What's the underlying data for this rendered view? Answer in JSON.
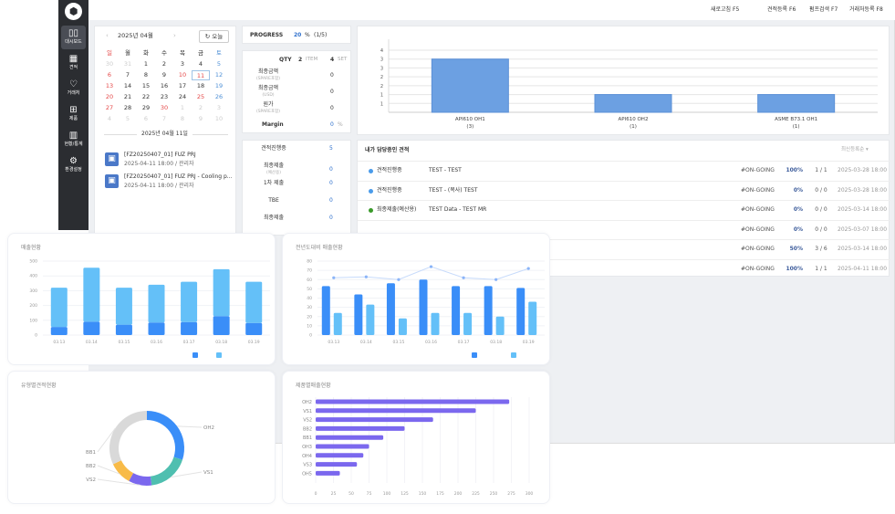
{
  "sidebar": {
    "items": [
      {
        "label": "대시보드",
        "icon": "dashboard-icon",
        "active": true
      },
      {
        "label": "견적",
        "icon": "quote-icon"
      },
      {
        "label": "거래처",
        "icon": "handshake-icon"
      },
      {
        "label": "제품",
        "icon": "product-icon"
      },
      {
        "label": "현황/통계",
        "icon": "chart-icon"
      },
      {
        "label": "환경설정",
        "icon": "gear-icon"
      }
    ]
  },
  "header": {
    "shortcuts": [
      "새로고침 F5",
      "견적등록 F6",
      "펌프검색 F7",
      "거래처등록 F8"
    ]
  },
  "calendar": {
    "title": "2025년 04월",
    "today_label": "오늘",
    "weekdays": [
      "일",
      "월",
      "화",
      "수",
      "목",
      "금",
      "토"
    ],
    "weeks": [
      [
        [
          "30",
          "m"
        ],
        [
          "31",
          "m"
        ],
        [
          "1",
          ""
        ],
        [
          "2",
          ""
        ],
        [
          "3",
          ""
        ],
        [
          "4",
          ""
        ],
        [
          "5",
          "s"
        ]
      ],
      [
        [
          "6",
          "h"
        ],
        [
          "7",
          ""
        ],
        [
          "8",
          ""
        ],
        [
          "9",
          ""
        ],
        [
          "10",
          "h"
        ],
        [
          "11",
          "t"
        ],
        [
          "12",
          "s"
        ]
      ],
      [
        [
          "13",
          "h"
        ],
        [
          "14",
          ""
        ],
        [
          "15",
          ""
        ],
        [
          "16",
          ""
        ],
        [
          "17",
          ""
        ],
        [
          "18",
          ""
        ],
        [
          "19",
          "s"
        ]
      ],
      [
        [
          "20",
          "h"
        ],
        [
          "21",
          ""
        ],
        [
          "22",
          ""
        ],
        [
          "23",
          ""
        ],
        [
          "24",
          ""
        ],
        [
          "25",
          "h"
        ],
        [
          "26",
          "s"
        ]
      ],
      [
        [
          "27",
          "h"
        ],
        [
          "28",
          ""
        ],
        [
          "29",
          ""
        ],
        [
          "30",
          "h"
        ],
        [
          "1",
          "m"
        ],
        [
          "2",
          "m"
        ],
        [
          "3",
          "m"
        ]
      ],
      [
        [
          "4",
          "m"
        ],
        [
          "5",
          "m"
        ],
        [
          "6",
          "m"
        ],
        [
          "7",
          "m"
        ],
        [
          "8",
          "m"
        ],
        [
          "9",
          "m"
        ],
        [
          "10",
          "m"
        ]
      ]
    ],
    "selected_date": "2025년 04월 11일",
    "events": [
      {
        "title": "[FZ20250407_01] FUZ PRJ",
        "meta": "2025-04-11 18:00 / 관리자"
      },
      {
        "title": "[FZ20250407_01] FUZ PRJ - Cooling p...",
        "meta": "2025-04-11 18:00 / 관리자"
      }
    ]
  },
  "progress": {
    "label": "PROGRESS",
    "value": "20",
    "unit": "%",
    "count": "(1/5)"
  },
  "qty": {
    "label": "QTY",
    "items": "2",
    "items_unit": "ITEM",
    "sets": "4",
    "sets_unit": "SET",
    "rows": [
      {
        "label": "최종금액",
        "sub": "(SPARE포함)",
        "value": "0"
      },
      {
        "label": "최종금액",
        "sub": "(USD)",
        "value": "0"
      },
      {
        "label": "원가",
        "sub": "(SPARE포함)",
        "value": "0"
      }
    ],
    "margin_label": "Margin",
    "margin_value": "0",
    "margin_unit": "%"
  },
  "status": [
    {
      "label": "견적진행중",
      "value": "5"
    },
    {
      "label": "최종제출",
      "sub": "(예산용)",
      "value": "0"
    },
    {
      "label": "1차 제출",
      "value": "0"
    },
    {
      "label": "TBE",
      "value": "0"
    },
    {
      "label": "최종제출",
      "value": "0"
    }
  ],
  "quotes": {
    "title": "내가 담당중인 견적",
    "sort": "최신등록순 ▾",
    "rows": [
      {
        "status": "견적진행중",
        "color": "#4a9bea",
        "name": "TEST - TEST",
        "tag": "#ON-GOING",
        "pct": "100%",
        "count": "1 / 1",
        "date": "2025-03-28 18:00"
      },
      {
        "status": "견적진행중",
        "color": "#4a9bea",
        "name": "TEST - (복사) TEST",
        "tag": "#ON-GOING",
        "pct": "0%",
        "count": "0 / 0",
        "date": "2025-03-28 18:00"
      },
      {
        "status": "최종제출(예산용)",
        "color": "#3a9a2a",
        "name": "TEST Data - TEST MR",
        "tag": "#ON-GOING",
        "pct": "0%",
        "count": "0 / 0",
        "date": "2025-03-14 18:00"
      },
      {
        "tag": "#ON-GOING",
        "pct": "0%",
        "count": "0 / 0",
        "date": "2025-03-07 18:00"
      },
      {
        "tag": "#ON-GOING",
        "pct": "50%",
        "count": "3 / 6",
        "date": "2025-03-14 18:00"
      },
      {
        "tag": "#ON-GOING",
        "pct": "100%",
        "count": "1 / 1",
        "date": "2025-04-11 18:00"
      }
    ]
  },
  "chart_data": [
    {
      "type": "bar",
      "categories": [
        "API610 OH1",
        "API610 OH2",
        "ASME B73.1 OH1"
      ],
      "category_counts": [
        "(3)",
        "(1)",
        "(1)"
      ],
      "values": [
        3,
        1,
        1
      ],
      "ylim": [
        0,
        3.5
      ],
      "yticks": [
        {
          "v": 3.5,
          "label": "4"
        },
        {
          "v": 3,
          "label": "3"
        },
        {
          "v": 2.5,
          "label": "3"
        },
        {
          "v": 2,
          "label": "2"
        },
        {
          "v": 1.5,
          "label": "2"
        },
        {
          "v": 1,
          "label": "1"
        },
        {
          "v": 0.5,
          "label": "1"
        }
      ],
      "grid": true,
      "color": "#6ca0e2"
    },
    {
      "type": "bar",
      "stacked": true,
      "title": "매출현황",
      "categories": [
        "03.13",
        "03.14",
        "03.15",
        "03.16",
        "03.17",
        "03.18",
        "03.19"
      ],
      "series": [
        {
          "values": [
            55,
            90,
            70,
            85,
            88,
            128,
            82
          ],
          "color": "#3a8ef8"
        },
        {
          "values": [
            265,
            365,
            250,
            255,
            272,
            317,
            278
          ],
          "color": "#64c0f8"
        }
      ],
      "ylim": [
        0,
        500
      ],
      "yticks": [
        0,
        100,
        200,
        300,
        400,
        500
      ],
      "grid": true,
      "legend": "bottom-right"
    },
    {
      "type": "bar",
      "title": "전년도대비 매출현황",
      "categories": [
        "03.13",
        "03.14",
        "03.15",
        "03.16",
        "03.17",
        "03.18",
        "03.19"
      ],
      "series": [
        {
          "values": [
            53,
            44,
            56,
            60,
            53,
            53,
            51
          ],
          "color": "#3a8ef8"
        },
        {
          "values": [
            24,
            33,
            18,
            24,
            24,
            20,
            36
          ],
          "color": "#64c0f8"
        }
      ],
      "line": {
        "values": [
          62,
          63,
          60,
          74,
          62,
          60,
          72
        ],
        "color": "#8ab4f8"
      },
      "ylim": [
        0,
        80
      ],
      "yticks": [
        0,
        10,
        20,
        30,
        40,
        50,
        60,
        70,
        80
      ],
      "grid": true,
      "legend": "bottom-right"
    },
    {
      "type": "pie",
      "donut": true,
      "title": "유형별견적현황",
      "slices": [
        {
          "label": "OH2",
          "value": 30,
          "color": "#3a8ef8"
        },
        {
          "label": "VS1",
          "value": 18,
          "color": "#4fbfb0"
        },
        {
          "label": "VS2",
          "value": 10,
          "color": "#7b68ee"
        },
        {
          "label": "BB2",
          "value": 10,
          "color": "#f8bb48"
        },
        {
          "label": "BB1",
          "value": 32,
          "color": "#d9d9d9"
        }
      ]
    },
    {
      "type": "bar",
      "orientation": "horizontal",
      "title": "제품별매출현황",
      "categories": [
        "OH2",
        "VS1",
        "VS2",
        "BB2",
        "BB1",
        "OH3",
        "OH4",
        "VS3",
        "OH5"
      ],
      "values": [
        272,
        225,
        165,
        125,
        95,
        75,
        67,
        58,
        34
      ],
      "xlim": [
        0,
        300
      ],
      "xticks": [
        0,
        25,
        50,
        75,
        100,
        125,
        150,
        175,
        200,
        225,
        250,
        275,
        300
      ],
      "color": "#7b68ee"
    }
  ]
}
